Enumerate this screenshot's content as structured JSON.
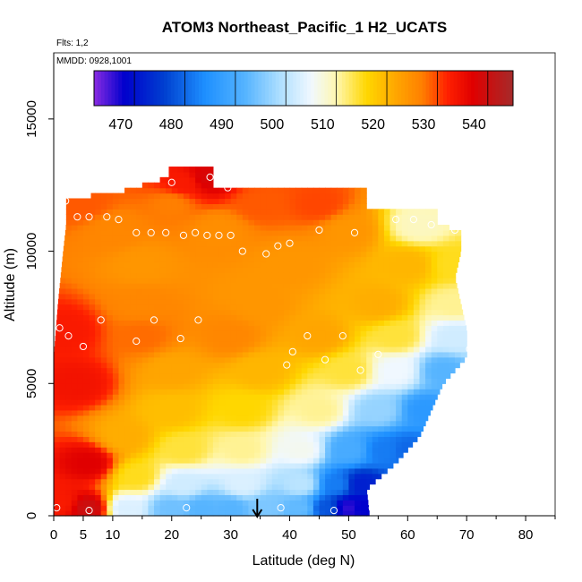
{
  "chart_data": {
    "type": "heatmap",
    "title": "ATOM3 Northeast_Pacific_1 H2_UCATS",
    "subtitle_flights": "Flts: 1,2",
    "subtitle_dates": "MMDD: 0928,1001",
    "xlabel": "Latitude (deg N)",
    "ylabel": "Altitude (m)",
    "xlim": [
      0,
      85
    ],
    "ylim": [
      0,
      17500
    ],
    "x_ticks": [
      0,
      5,
      10,
      20,
      30,
      40,
      50,
      60,
      70,
      80
    ],
    "x_tick_labels": [
      "0",
      "5",
      "10",
      "20",
      "30",
      "40",
      "50",
      "60",
      "70",
      "80"
    ],
    "y_ticks": [
      0,
      5000,
      10000,
      15000
    ],
    "y_tick_labels": [
      "0",
      "5000",
      "10000",
      "15000"
    ],
    "colorbar": {
      "range": [
        462,
        545
      ],
      "ticks": [
        470,
        480,
        490,
        500,
        510,
        520,
        530,
        540
      ],
      "tick_labels": [
        "470",
        "480",
        "490",
        "500",
        "510",
        "520",
        "530",
        "540"
      ],
      "stops": [
        {
          "v": 462,
          "c": "#8a2be2"
        },
        {
          "v": 468,
          "c": "#0000cd"
        },
        {
          "v": 476,
          "c": "#0040d0"
        },
        {
          "v": 484,
          "c": "#1e90ff"
        },
        {
          "v": 492,
          "c": "#56b4ff"
        },
        {
          "v": 499,
          "c": "#b0e0ff"
        },
        {
          "v": 505,
          "c": "#f0f8ff"
        },
        {
          "v": 510,
          "c": "#fff7b0"
        },
        {
          "v": 516,
          "c": "#ffd700"
        },
        {
          "v": 522,
          "c": "#ffa500"
        },
        {
          "v": 527,
          "c": "#ff7f00"
        },
        {
          "v": 532,
          "c": "#ff2000"
        },
        {
          "v": 537,
          "c": "#e00000"
        },
        {
          "v": 545,
          "c": "#a52a2a"
        }
      ]
    },
    "arrow_latitude": 34.5,
    "field": {
      "lat_max_by_alt": [
        [
          0,
          53.5
        ],
        [
          1000,
          53
        ],
        [
          2000,
          58
        ],
        [
          3000,
          62
        ],
        [
          4000,
          64
        ],
        [
          5000,
          66
        ],
        [
          6000,
          70
        ],
        [
          7000,
          70
        ],
        [
          8000,
          69
        ],
        [
          9000,
          68
        ],
        [
          10000,
          69
        ],
        [
          10800,
          69
        ],
        [
          11000,
          65
        ],
        [
          11600,
          65
        ],
        [
          11700,
          53
        ],
        [
          12300,
          53
        ],
        [
          12400,
          27
        ],
        [
          12800,
          27
        ],
        [
          12900,
          27
        ],
        [
          13100,
          27
        ]
      ],
      "lat_min_by_alt": [
        [
          0,
          0
        ],
        [
          6000,
          0
        ],
        [
          8000,
          0.7
        ],
        [
          10000,
          1.6
        ],
        [
          11000,
          2.1
        ],
        [
          12000,
          2.1
        ],
        [
          12200,
          10.5
        ],
        [
          12800,
          19.5
        ],
        [
          13100,
          19.5
        ]
      ],
      "blend_points": [
        {
          "lat": 1,
          "alt": 500,
          "v": 533
        },
        {
          "lat": 6,
          "alt": 300,
          "v": 540
        },
        {
          "lat": 6,
          "alt": 2000,
          "v": 537
        },
        {
          "lat": 4,
          "alt": 5000,
          "v": 534
        },
        {
          "lat": 2,
          "alt": 7000,
          "v": 533
        },
        {
          "lat": 12,
          "alt": 300,
          "v": 503
        },
        {
          "lat": 14,
          "alt": 1500,
          "v": 515
        },
        {
          "lat": 12,
          "alt": 3000,
          "v": 521
        },
        {
          "lat": 20,
          "alt": 300,
          "v": 494
        },
        {
          "lat": 25,
          "alt": 300,
          "v": 492
        },
        {
          "lat": 30,
          "alt": 300,
          "v": 492
        },
        {
          "lat": 36,
          "alt": 300,
          "v": 495
        },
        {
          "lat": 42,
          "alt": 300,
          "v": 493
        },
        {
          "lat": 46,
          "alt": 300,
          "v": 478
        },
        {
          "lat": 50,
          "alt": 300,
          "v": 466
        },
        {
          "lat": 52,
          "alt": 300,
          "v": 468
        },
        {
          "lat": 22,
          "alt": 1200,
          "v": 502
        },
        {
          "lat": 32,
          "alt": 1200,
          "v": 503
        },
        {
          "lat": 42,
          "alt": 1200,
          "v": 500
        },
        {
          "lat": 48,
          "alt": 1200,
          "v": 482
        },
        {
          "lat": 52,
          "alt": 1200,
          "v": 472
        },
        {
          "lat": 22,
          "alt": 2500,
          "v": 514
        },
        {
          "lat": 32,
          "alt": 2500,
          "v": 511
        },
        {
          "lat": 42,
          "alt": 2500,
          "v": 506
        },
        {
          "lat": 50,
          "alt": 2500,
          "v": 490
        },
        {
          "lat": 56,
          "alt": 2500,
          "v": 482
        },
        {
          "lat": 60,
          "alt": 2500,
          "v": 480
        },
        {
          "lat": 20,
          "alt": 4000,
          "v": 519
        },
        {
          "lat": 32,
          "alt": 4000,
          "v": 516
        },
        {
          "lat": 45,
          "alt": 4000,
          "v": 511
        },
        {
          "lat": 55,
          "alt": 4000,
          "v": 497
        },
        {
          "lat": 63,
          "alt": 4000,
          "v": 486
        },
        {
          "lat": 20,
          "alt": 5500,
          "v": 522
        },
        {
          "lat": 35,
          "alt": 5500,
          "v": 520
        },
        {
          "lat": 50,
          "alt": 5500,
          "v": 514
        },
        {
          "lat": 58,
          "alt": 5500,
          "v": 505
        },
        {
          "lat": 66,
          "alt": 5500,
          "v": 492
        },
        {
          "lat": 15,
          "alt": 6800,
          "v": 528
        },
        {
          "lat": 30,
          "alt": 6800,
          "v": 526
        },
        {
          "lat": 45,
          "alt": 6800,
          "v": 522
        },
        {
          "lat": 58,
          "alt": 6800,
          "v": 514
        },
        {
          "lat": 68,
          "alt": 6800,
          "v": 502
        },
        {
          "lat": 15,
          "alt": 8000,
          "v": 526
        },
        {
          "lat": 35,
          "alt": 8000,
          "v": 524
        },
        {
          "lat": 55,
          "alt": 8000,
          "v": 521
        },
        {
          "lat": 68,
          "alt": 8000,
          "v": 511
        },
        {
          "lat": 15,
          "alt": 9500,
          "v": 524
        },
        {
          "lat": 40,
          "alt": 9500,
          "v": 524
        },
        {
          "lat": 60,
          "alt": 9500,
          "v": 520
        },
        {
          "lat": 68,
          "alt": 9500,
          "v": 515
        },
        {
          "lat": 10,
          "alt": 10800,
          "v": 526
        },
        {
          "lat": 28,
          "alt": 10800,
          "v": 525
        },
        {
          "lat": 50,
          "alt": 10800,
          "v": 524
        },
        {
          "lat": 62,
          "alt": 11000,
          "v": 509
        },
        {
          "lat": 5,
          "alt": 11800,
          "v": 529
        },
        {
          "lat": 20,
          "alt": 11800,
          "v": 527
        },
        {
          "lat": 35,
          "alt": 11800,
          "v": 529
        },
        {
          "lat": 45,
          "alt": 11800,
          "v": 530
        },
        {
          "lat": 22,
          "alt": 12600,
          "v": 533
        },
        {
          "lat": 26,
          "alt": 12800,
          "v": 538
        }
      ]
    },
    "sample_points": [
      [
        0.5,
        300
      ],
      [
        1,
        7100
      ],
      [
        6,
        200
      ],
      [
        47.5,
        200
      ],
      [
        54,
        300
      ],
      [
        2,
        11900
      ],
      [
        4,
        11300
      ],
      [
        6,
        11300
      ],
      [
        9,
        11300
      ],
      [
        11,
        11200
      ],
      [
        11,
        12400
      ],
      [
        20,
        12600
      ],
      [
        26.5,
        12800
      ],
      [
        29.5,
        12400
      ],
      [
        14,
        10700
      ],
      [
        16.5,
        10700
      ],
      [
        19,
        10700
      ],
      [
        22,
        10600
      ],
      [
        24,
        10700
      ],
      [
        26,
        10600
      ],
      [
        28,
        10600
      ],
      [
        30,
        10600
      ],
      [
        32,
        10000
      ],
      [
        36,
        9900
      ],
      [
        38,
        10200
      ],
      [
        40,
        10300
      ],
      [
        45,
        10800
      ],
      [
        51,
        10700
      ],
      [
        58,
        11200
      ],
      [
        61,
        11200
      ],
      [
        64,
        11000
      ],
      [
        68,
        10800
      ],
      [
        2.5,
        6800
      ],
      [
        5,
        6400
      ],
      [
        8,
        7400
      ],
      [
        14,
        6600
      ],
      [
        17,
        7400
      ],
      [
        21.5,
        6700
      ],
      [
        24.5,
        7400
      ],
      [
        39.5,
        5700
      ],
      [
        40.5,
        6200
      ],
      [
        43,
        6800
      ],
      [
        46,
        5900
      ],
      [
        49,
        6800
      ],
      [
        52,
        5500
      ],
      [
        55,
        6100
      ],
      [
        70.5,
        6300
      ],
      [
        38.5,
        300
      ],
      [
        22.5,
        300
      ]
    ]
  }
}
